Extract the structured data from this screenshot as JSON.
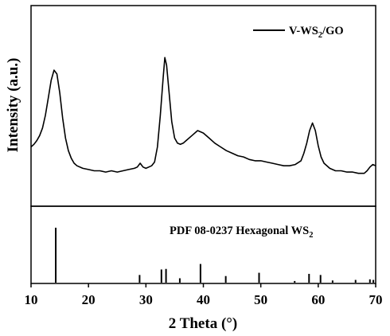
{
  "chart_data": [
    {
      "type": "line",
      "panel": "top",
      "ylabel": "Intensity (a.u.)",
      "legend": {
        "position": "top-right",
        "label_main": "V-WS",
        "label_sub": "2",
        "label_tail": "/GO"
      },
      "xlim": [
        10,
        70
      ],
      "y_axis_ticks_shown": false,
      "series": [
        {
          "name": "V-WS2/GO",
          "x": [
            10,
            10.5,
            11,
            11.5,
            12,
            12.5,
            13,
            13.5,
            14,
            14.5,
            15,
            15.5,
            16,
            16.5,
            17,
            17.5,
            18,
            19,
            20,
            21,
            22,
            23,
            24,
            25,
            26,
            27,
            28,
            28.5,
            29,
            29.5,
            30,
            30.5,
            31,
            31.5,
            32,
            32.5,
            33,
            33.3,
            33.6,
            34,
            34.5,
            35,
            35.5,
            36,
            36.5,
            37,
            38,
            39,
            40,
            41,
            42,
            43,
            44,
            45,
            46,
            47,
            48,
            49,
            50,
            51,
            52,
            53,
            54,
            55,
            56,
            57,
            57.5,
            58,
            58.5,
            59,
            59.5,
            60,
            60.5,
            61,
            62,
            63,
            64,
            65,
            66,
            67,
            68,
            68.5,
            69,
            69.5,
            70
          ],
          "y": [
            0.25,
            0.27,
            0.3,
            0.34,
            0.4,
            0.5,
            0.64,
            0.78,
            0.86,
            0.83,
            0.68,
            0.48,
            0.32,
            0.22,
            0.16,
            0.12,
            0.1,
            0.08,
            0.07,
            0.06,
            0.06,
            0.05,
            0.06,
            0.05,
            0.06,
            0.07,
            0.08,
            0.09,
            0.12,
            0.09,
            0.08,
            0.09,
            0.1,
            0.13,
            0.25,
            0.5,
            0.8,
            0.96,
            0.9,
            0.7,
            0.45,
            0.32,
            0.28,
            0.27,
            0.28,
            0.3,
            0.34,
            0.38,
            0.36,
            0.32,
            0.28,
            0.25,
            0.22,
            0.2,
            0.18,
            0.17,
            0.15,
            0.14,
            0.14,
            0.13,
            0.12,
            0.11,
            0.1,
            0.1,
            0.11,
            0.14,
            0.2,
            0.28,
            0.38,
            0.44,
            0.38,
            0.26,
            0.17,
            0.12,
            0.08,
            0.06,
            0.06,
            0.05,
            0.05,
            0.04,
            0.04,
            0.06,
            0.09,
            0.11,
            0.1
          ]
        }
      ]
    },
    {
      "type": "bar",
      "panel": "bottom",
      "label_main": "PDF 08-0237 Hexagonal WS",
      "label_sub": "2",
      "xlim": [
        10,
        70
      ],
      "ylim": [
        0,
        100
      ],
      "x": [
        14.3,
        28.9,
        32.7,
        33.5,
        35.9,
        39.5,
        43.9,
        49.7,
        55.9,
        58.4,
        60.4,
        62.5,
        66.5,
        69.0,
        69.6
      ],
      "values": [
        100,
        14,
        24,
        25,
        8,
        34,
        12,
        18,
        3,
        16,
        14,
        4,
        5,
        6,
        5
      ]
    }
  ],
  "xaxis": {
    "label": "2 Theta (°)",
    "ticks": [
      "10",
      "20",
      "30",
      "40",
      "50",
      "60",
      "70"
    ],
    "tick_values": [
      10,
      20,
      30,
      40,
      50,
      60,
      70
    ]
  }
}
